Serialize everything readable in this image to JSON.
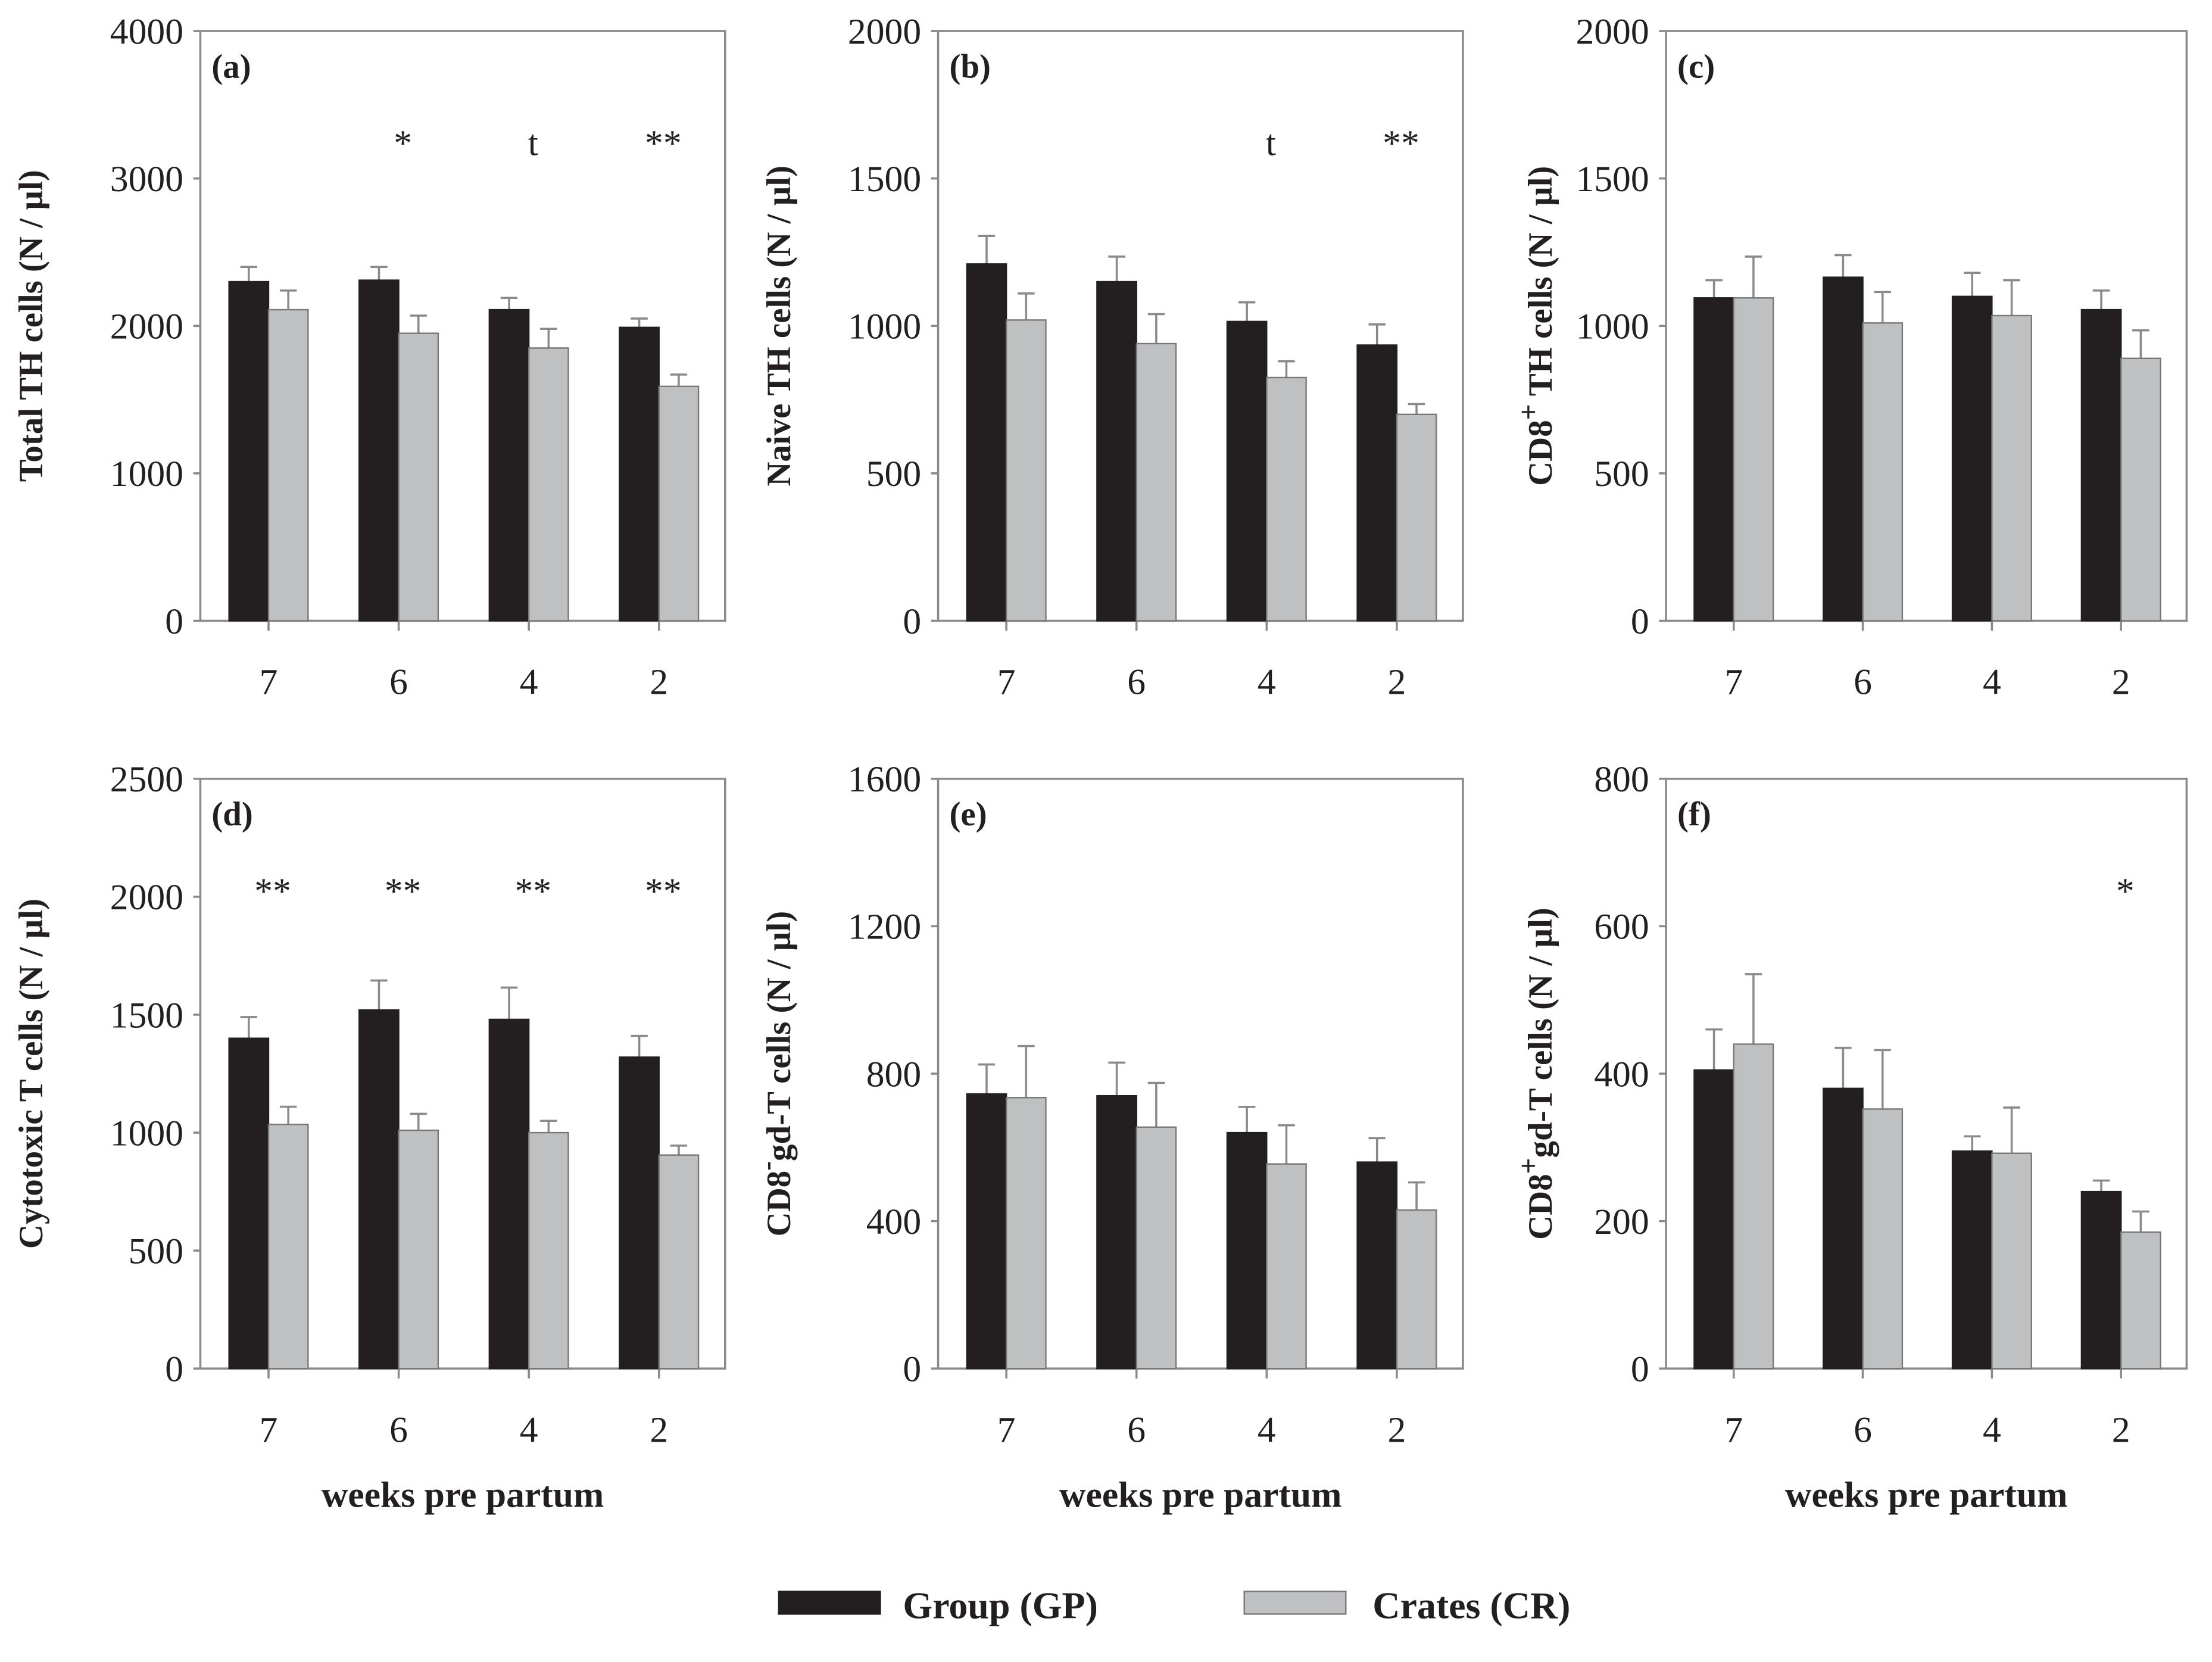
{
  "colors": {
    "group": "#231f20",
    "crates": "#bfc0c2",
    "frame": "#8a8a8a"
  },
  "legend": [
    {
      "name": "Group (GP)",
      "color": "#231f20"
    },
    {
      "name": "Crates (CR)",
      "color": "#bfc0c2"
    }
  ],
  "chart_data": [
    {
      "type": "bar",
      "panel": "(a)",
      "ylabel": {
        "main": "Total TH cells (N / µl)",
        "sup": "",
        "rest": ""
      },
      "ylim": [
        0,
        4000
      ],
      "yticks": [
        "0",
        "1000",
        "2000",
        "3000",
        "4000"
      ],
      "categories": [
        "7",
        "6",
        "4",
        "2"
      ],
      "xlabel": "",
      "series": [
        {
          "name": "Group (GP)",
          "values": [
            2300,
            2310,
            2110,
            1990
          ],
          "errors": [
            100,
            90,
            80,
            60
          ]
        },
        {
          "name": "Crates (CR)",
          "values": [
            2110,
            1950,
            1850,
            1590
          ],
          "errors": [
            130,
            120,
            130,
            80
          ]
        }
      ],
      "significance": [
        "",
        "*",
        "t",
        "**"
      ]
    },
    {
      "type": "bar",
      "panel": "(b)",
      "ylabel": {
        "main": "Naive TH cells (N / µl)",
        "sup": "",
        "rest": ""
      },
      "ylim": [
        0,
        2000
      ],
      "yticks": [
        "0",
        "500",
        "1000",
        "1500",
        "2000"
      ],
      "categories": [
        "7",
        "6",
        "4",
        "2"
      ],
      "xlabel": "",
      "series": [
        {
          "name": "Group (GP)",
          "values": [
            1210,
            1150,
            1015,
            935
          ],
          "errors": [
            95,
            85,
            65,
            70
          ]
        },
        {
          "name": "Crates (CR)",
          "values": [
            1020,
            940,
            825,
            700
          ],
          "errors": [
            90,
            100,
            55,
            35
          ]
        }
      ],
      "significance": [
        "",
        "",
        "t",
        "**"
      ]
    },
    {
      "type": "bar",
      "panel": "(c)",
      "ylabel": {
        "main": "CD8",
        "sup": "+",
        "rest": " TH cells (N / µl)"
      },
      "ylim": [
        0,
        2000
      ],
      "yticks": [
        "0",
        "500",
        "1000",
        "1500",
        "2000"
      ],
      "categories": [
        "7",
        "6",
        "4",
        "2"
      ],
      "xlabel": "",
      "series": [
        {
          "name": "Group (GP)",
          "values": [
            1095,
            1165,
            1100,
            1055
          ],
          "errors": [
            60,
            75,
            80,
            65
          ]
        },
        {
          "name": "Crates (CR)",
          "values": [
            1095,
            1010,
            1035,
            890
          ],
          "errors": [
            140,
            105,
            120,
            95
          ]
        }
      ],
      "significance": [
        "",
        "",
        "",
        ""
      ]
    },
    {
      "type": "bar",
      "panel": "(d)",
      "ylabel": {
        "main": "Cytotoxic T cells (N / µl)",
        "sup": "",
        "rest": ""
      },
      "ylim": [
        0,
        2500
      ],
      "yticks": [
        "0",
        "500",
        "1000",
        "1500",
        "2000",
        "2500"
      ],
      "categories": [
        "7",
        "6",
        "4",
        "2"
      ],
      "xlabel": "weeks pre partum",
      "series": [
        {
          "name": "Group (GP)",
          "values": [
            1400,
            1520,
            1480,
            1320
          ],
          "errors": [
            90,
            125,
            135,
            90
          ]
        },
        {
          "name": "Crates (CR)",
          "values": [
            1035,
            1010,
            1000,
            905
          ],
          "errors": [
            75,
            70,
            50,
            40
          ]
        }
      ],
      "significance": [
        "**",
        "**",
        "**",
        "**"
      ]
    },
    {
      "type": "bar",
      "panel": "(e)",
      "ylabel": {
        "main": "CD8",
        "sup": "-",
        "rest": "gd-T cells (N / µl)"
      },
      "ylim": [
        0,
        1600
      ],
      "yticks": [
        "0",
        "400",
        "800",
        "1200",
        "1600"
      ],
      "categories": [
        "7",
        "6",
        "4",
        "2"
      ],
      "xlabel": "weeks pre partum",
      "series": [
        {
          "name": "Group (GP)",
          "values": [
            745,
            740,
            640,
            560
          ],
          "errors": [
            80,
            90,
            70,
            65
          ]
        },
        {
          "name": "Crates (CR)",
          "values": [
            735,
            655,
            555,
            430
          ],
          "errors": [
            140,
            120,
            105,
            75
          ]
        }
      ],
      "significance": [
        "",
        "",
        "",
        ""
      ]
    },
    {
      "type": "bar",
      "panel": "(f)",
      "ylabel": {
        "main": "CD8",
        "sup": "+",
        "rest": "gd-T cells (N / µl)"
      },
      "ylim": [
        0,
        800
      ],
      "yticks": [
        "0",
        "200",
        "400",
        "600",
        "800"
      ],
      "categories": [
        "7",
        "6",
        "4",
        "2"
      ],
      "xlabel": "weeks pre partum",
      "series": [
        {
          "name": "Group (GP)",
          "values": [
            405,
            380,
            295,
            240
          ],
          "errors": [
            55,
            55,
            20,
            15
          ]
        },
        {
          "name": "Crates (CR)",
          "values": [
            440,
            352,
            292,
            185
          ],
          "errors": [
            95,
            80,
            62,
            28
          ]
        }
      ],
      "significance": [
        "",
        "",
        "",
        "*"
      ]
    }
  ]
}
